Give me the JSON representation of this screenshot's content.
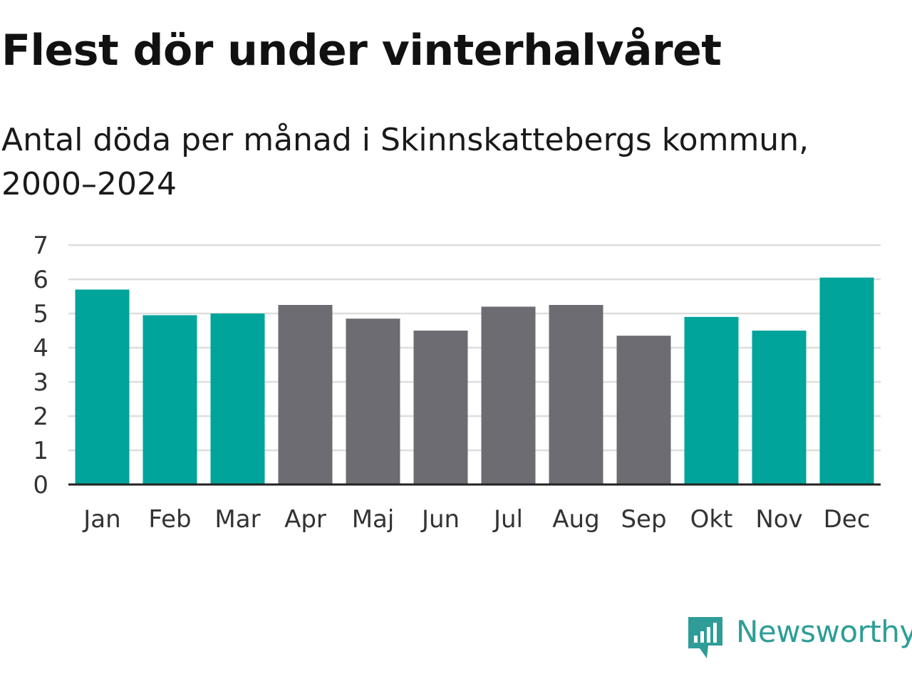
{
  "colors": {
    "winter": "#00a49a",
    "summer": "#6d6c73",
    "grid": "#dedede",
    "axis": "#222222",
    "brand": "#2e9d97"
  },
  "brand": {
    "name": "Newsworthy",
    "icon": "bar-chart-bubble-icon"
  },
  "chart_data": {
    "type": "bar",
    "title": "Flest dör under vinterhalvåret",
    "subtitle": "Antal döda per månad i Skinnskattebergs kommun, 2000–2024",
    "categories": [
      "Jan",
      "Feb",
      "Mar",
      "Apr",
      "Maj",
      "Jun",
      "Jul",
      "Aug",
      "Sep",
      "Okt",
      "Nov",
      "Dec"
    ],
    "values": [
      5.7,
      4.95,
      5.0,
      5.25,
      4.85,
      4.5,
      5.2,
      5.25,
      4.35,
      4.9,
      4.5,
      6.05
    ],
    "groups": [
      "winter",
      "winter",
      "winter",
      "summer",
      "summer",
      "summer",
      "summer",
      "summer",
      "summer",
      "winter",
      "winter",
      "winter"
    ],
    "ylim": [
      0,
      7
    ],
    "yticks": [
      "0",
      "1",
      "2",
      "3",
      "4",
      "5",
      "6",
      "7"
    ],
    "xlabel": "",
    "ylabel": "",
    "grid": true
  }
}
